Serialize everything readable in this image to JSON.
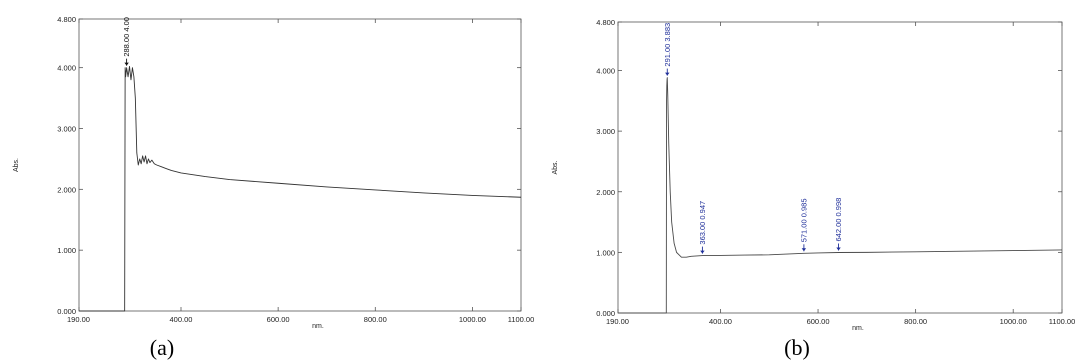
{
  "chart_data": [
    {
      "panel": "a",
      "type": "line",
      "caption": "(a)",
      "xlabel": "nm.",
      "ylabel": "Abs.",
      "xlim": [
        190,
        1100
      ],
      "ylim": [
        0,
        4.8
      ],
      "x_ticks": [
        "190.00",
        "400.00",
        "600.00",
        "800.00",
        "1000.00",
        "1100.00"
      ],
      "y_ticks": [
        "0.000",
        "1.000",
        "2.000",
        "3.000",
        "4.000",
        "4.800"
      ],
      "series": [
        {
          "x": [
            190,
            284,
            285,
            286,
            288,
            291,
            294,
            297,
            300,
            303,
            306,
            309,
            312,
            315,
            318,
            321,
            324,
            327,
            330,
            333,
            336,
            340,
            345,
            350,
            360,
            370,
            380,
            400,
            450,
            500,
            600,
            700,
            800,
            900,
            1000,
            1100
          ],
          "y": [
            0,
            0,
            4.0,
            3.85,
            4.0,
            3.85,
            4.02,
            3.8,
            4.0,
            3.85,
            3.5,
            2.6,
            2.4,
            2.5,
            2.42,
            2.55,
            2.45,
            2.55,
            2.42,
            2.5,
            2.44,
            2.48,
            2.42,
            2.4,
            2.37,
            2.34,
            2.31,
            2.27,
            2.21,
            2.16,
            2.1,
            2.04,
            1.99,
            1.94,
            1.9,
            1.87
          ],
          "color": "#333333"
        }
      ],
      "annotations": [
        {
          "x": 288,
          "y": 4.0,
          "label": "288.00  4.00"
        }
      ]
    },
    {
      "panel": "b",
      "type": "line",
      "caption": "(b)",
      "xlabel": "nm.",
      "ylabel": "Abs.",
      "xlim": [
        190,
        1100
      ],
      "ylim": [
        0,
        4.8
      ],
      "x_ticks": [
        "190.00",
        "400.00",
        "600.00",
        "800.00",
        "1000.00",
        "1100.00"
      ],
      "y_ticks": [
        "0.000",
        "1.000",
        "2.000",
        "3.000",
        "4.000",
        "4.800"
      ],
      "series": [
        {
          "x": [
            190,
            289,
            289.5,
            290,
            290.5,
            291,
            292,
            294,
            297,
            300,
            305,
            310,
            320,
            330,
            340,
            363,
            400,
            450,
            500,
            571,
            600,
            642,
            700,
            800,
            900,
            1000,
            1100
          ],
          "y": [
            0,
            0,
            3.5,
            3.75,
            3.85,
            3.883,
            3.6,
            2.8,
            2.0,
            1.5,
            1.15,
            1.0,
            0.92,
            0.92,
            0.935,
            0.947,
            0.95,
            0.955,
            0.96,
            0.985,
            0.99,
            0.998,
            1.0,
            1.01,
            1.02,
            1.03,
            1.04
          ],
          "color": "#4a4a4a"
        }
      ],
      "annotations": [
        {
          "x": 291,
          "y": 3.883,
          "label": "291.00  3.883"
        },
        {
          "x": 363,
          "y": 0.947,
          "label": "363.00  0.947"
        },
        {
          "x": 571,
          "y": 0.985,
          "label": "571.00  0.985"
        },
        {
          "x": 642,
          "y": 0.998,
          "label": "642.00  0.998"
        }
      ]
    }
  ]
}
